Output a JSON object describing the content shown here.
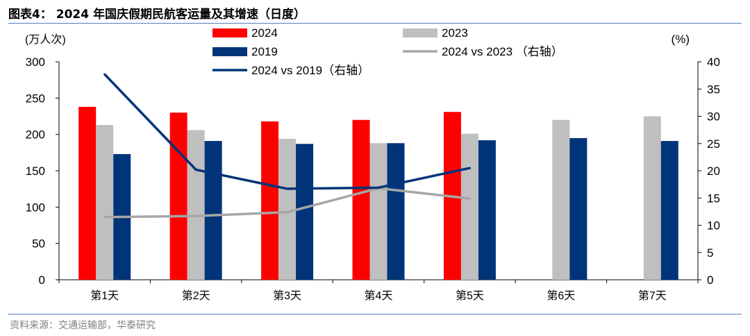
{
  "figure": {
    "title": "图表4： 2024 年国庆假期民航客运量及其增速（日度）",
    "source": "资料来源：交通运输部，华泰研究"
  },
  "chart_data": {
    "type": "bar",
    "categories": [
      "第1天",
      "第2天",
      "第3天",
      "第4天",
      "第5天",
      "第6天",
      "第7天"
    ],
    "left_axis": {
      "label": "(万人次)",
      "ylim": [
        0,
        300
      ],
      "ticks": [
        0,
        50,
        100,
        150,
        200,
        250,
        300
      ]
    },
    "right_axis": {
      "label": "(%)",
      "ylim": [
        0,
        40
      ],
      "ticks": [
        0,
        5,
        10,
        15,
        20,
        25,
        30,
        35,
        40
      ]
    },
    "bar_series": [
      {
        "name": "2024",
        "color": "#ff0000",
        "values": [
          238,
          230,
          218,
          220,
          231,
          null,
          null
        ]
      },
      {
        "name": "2023",
        "color": "#bfbfbf",
        "values": [
          213,
          206,
          194,
          188,
          201,
          220,
          225
        ]
      },
      {
        "name": "2019",
        "color": "#003478",
        "values": [
          173,
          191,
          187,
          188,
          192,
          195,
          191
        ]
      }
    ],
    "line_series": [
      {
        "name": "2024 vs 2023 （右轴）",
        "color": "#a6a6a6",
        "axis": "right",
        "values": [
          11.5,
          11.7,
          12.4,
          16.8,
          14.9
        ]
      },
      {
        "name": "2024 vs 2019（右轴）",
        "color": "#003478",
        "axis": "right",
        "values": [
          37.7,
          20.2,
          16.7,
          16.9,
          20.5
        ]
      }
    ],
    "legend_placement": "top",
    "grid": false
  }
}
